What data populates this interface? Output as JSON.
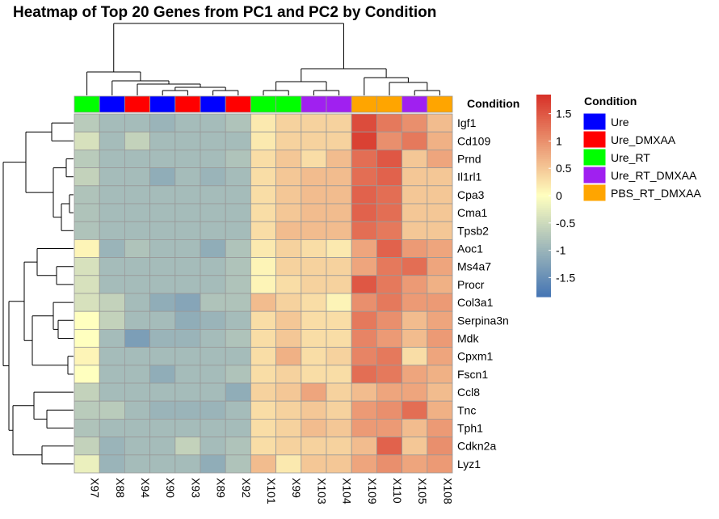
{
  "chart_data": {
    "type": "heatmap",
    "title": "Heatmap of Top 20 Genes from PC1 and PC2 by Condition",
    "rows": [
      "Igf1",
      "Cd109",
      "Prnd",
      "Il1rl1",
      "Cpa3",
      "Cma1",
      "Tpsb2",
      "Aoc1",
      "Ms4a7",
      "Procr",
      "Col3a1",
      "Serpina3n",
      "Mdk",
      "Cpxm1",
      "Fscn1",
      "Ccl8",
      "Tnc",
      "Tph1",
      "Cdkn2a",
      "Lyz1"
    ],
    "columns": [
      "X97",
      "X88",
      "X94",
      "X90",
      "X93",
      "X89",
      "X92",
      "X101",
      "X99",
      "X103",
      "X104",
      "X109",
      "X110",
      "X105",
      "X108"
    ],
    "column_conditions": [
      "Ure_RT",
      "Ure",
      "Ure_DMXAA",
      "Ure",
      "Ure_DMXAA",
      "Ure",
      "Ure_DMXAA",
      "Ure_RT",
      "Ure_RT",
      "Ure_RT_DMXAA",
      "Ure_RT_DMXAA",
      "PBS_RT_DMXAA",
      "PBS_RT_DMXAA",
      "Ure_RT_DMXAA",
      "PBS_RT_DMXAA"
    ],
    "values": [
      [
        -0.7,
        -0.9,
        -0.9,
        -1.0,
        -0.9,
        -0.9,
        -0.8,
        0.2,
        0.4,
        0.4,
        0.4,
        1.6,
        1.2,
        1.0,
        0.6
      ],
      [
        -0.4,
        -0.9,
        -0.6,
        -0.9,
        -0.9,
        -0.9,
        -0.9,
        0.2,
        0.4,
        0.4,
        0.4,
        1.7,
        1.0,
        1.2,
        0.7
      ],
      [
        -0.7,
        -0.9,
        -0.9,
        -0.9,
        -0.9,
        -0.9,
        -0.8,
        0.3,
        0.5,
        0.3,
        0.6,
        1.3,
        1.5,
        0.5,
        0.8
      ],
      [
        -0.6,
        -0.9,
        -0.9,
        -1.1,
        -0.9,
        -1.0,
        -0.9,
        0.3,
        0.5,
        0.6,
        0.6,
        1.3,
        1.4,
        0.5,
        0.5
      ],
      [
        -0.8,
        -0.9,
        -0.9,
        -0.9,
        -0.9,
        -0.9,
        -0.9,
        0.3,
        0.5,
        0.6,
        0.6,
        1.4,
        1.3,
        0.5,
        0.5
      ],
      [
        -0.8,
        -0.9,
        -0.9,
        -0.9,
        -0.9,
        -0.9,
        -0.9,
        0.3,
        0.5,
        0.6,
        0.6,
        1.4,
        1.3,
        0.5,
        0.5
      ],
      [
        -0.8,
        -0.9,
        -0.9,
        -0.9,
        -0.9,
        -0.9,
        -0.9,
        0.3,
        0.6,
        0.6,
        0.6,
        1.3,
        1.2,
        0.5,
        0.5
      ],
      [
        0.1,
        -1.0,
        -0.8,
        -0.9,
        -0.9,
        -1.1,
        -0.8,
        0.2,
        0.4,
        0.3,
        0.2,
        0.8,
        1.4,
        0.9,
        0.8
      ],
      [
        -0.4,
        -0.9,
        -0.9,
        -0.9,
        -0.9,
        -0.9,
        -0.8,
        0.1,
        0.4,
        0.4,
        0.4,
        0.8,
        1.2,
        1.3,
        0.8
      ],
      [
        -0.4,
        -0.9,
        -0.9,
        -0.9,
        -0.9,
        -0.9,
        -0.8,
        0.1,
        0.3,
        0.4,
        0.4,
        1.5,
        1.2,
        0.9,
        0.7
      ],
      [
        -0.4,
        -0.6,
        -0.9,
        -1.1,
        -1.2,
        -0.8,
        -0.8,
        0.6,
        0.4,
        0.3,
        0.1,
        1.0,
        1.2,
        0.9,
        0.9
      ],
      [
        0.0,
        -0.6,
        -0.9,
        -0.9,
        -1.1,
        -1.0,
        -0.9,
        0.3,
        0.5,
        0.3,
        0.3,
        1.2,
        1.0,
        0.6,
        0.8
      ],
      [
        0.0,
        -0.9,
        -1.3,
        -1.0,
        -1.0,
        -0.9,
        -0.8,
        0.3,
        0.5,
        0.3,
        0.3,
        1.1,
        0.9,
        0.6,
        0.9
      ],
      [
        0.1,
        -0.9,
        -0.9,
        -0.9,
        -0.9,
        -0.9,
        -0.9,
        0.3,
        0.7,
        0.3,
        0.4,
        1.1,
        1.2,
        0.3,
        0.8
      ],
      [
        0.0,
        -0.9,
        -0.9,
        -1.1,
        -0.9,
        -0.9,
        -0.8,
        0.3,
        0.4,
        0.3,
        0.3,
        1.3,
        1.2,
        0.8,
        0.7
      ],
      [
        -0.6,
        -0.9,
        -0.9,
        -0.9,
        -0.9,
        -0.9,
        -1.1,
        0.4,
        0.5,
        0.8,
        0.4,
        0.6,
        0.8,
        0.8,
        0.6
      ],
      [
        -0.7,
        -0.7,
        -0.9,
        -1.0,
        -1.0,
        -1.0,
        -0.9,
        0.3,
        0.4,
        0.5,
        0.4,
        0.9,
        1.0,
        1.3,
        0.7
      ],
      [
        -0.8,
        -0.9,
        -0.9,
        -0.9,
        -0.9,
        -0.9,
        -0.9,
        0.3,
        0.4,
        0.6,
        0.5,
        0.9,
        0.9,
        0.6,
        0.9
      ],
      [
        -0.6,
        -1.0,
        -0.9,
        -0.9,
        -0.6,
        -0.9,
        -0.8,
        0.3,
        0.4,
        0.4,
        0.4,
        0.6,
        1.4,
        0.5,
        1.0
      ],
      [
        -0.2,
        -1.0,
        -0.9,
        -0.9,
        -0.9,
        -1.1,
        -0.8,
        0.6,
        0.2,
        0.5,
        0.5,
        0.8,
        1.0,
        0.8,
        0.9
      ]
    ],
    "scale": {
      "min": -1.85,
      "max": 1.85,
      "ticks": [
        "1.5",
        "1",
        "0.5",
        "0",
        "-0.5",
        "-1",
        "-1.5"
      ],
      "tick_values": [
        1.5,
        1,
        0.5,
        0,
        -0.5,
        -1,
        -1.5
      ]
    },
    "annotation_header": "Condition",
    "legend": {
      "title": "Condition",
      "entries": [
        {
          "label": "Ure",
          "color": "#0000ff"
        },
        {
          "label": "Ure_DMXAA",
          "color": "#ff0000"
        },
        {
          "label": "Ure_RT",
          "color": "#00ff00"
        },
        {
          "label": "Ure_RT_DMXAA",
          "color": "#a020f0"
        },
        {
          "label": "PBS_RT_DMXAA",
          "color": "#ffa500"
        }
      ]
    },
    "colors": {
      "low": "#4575b4",
      "mid": "#ffffbf",
      "high": "#d73027",
      "grid": "#999999"
    }
  }
}
